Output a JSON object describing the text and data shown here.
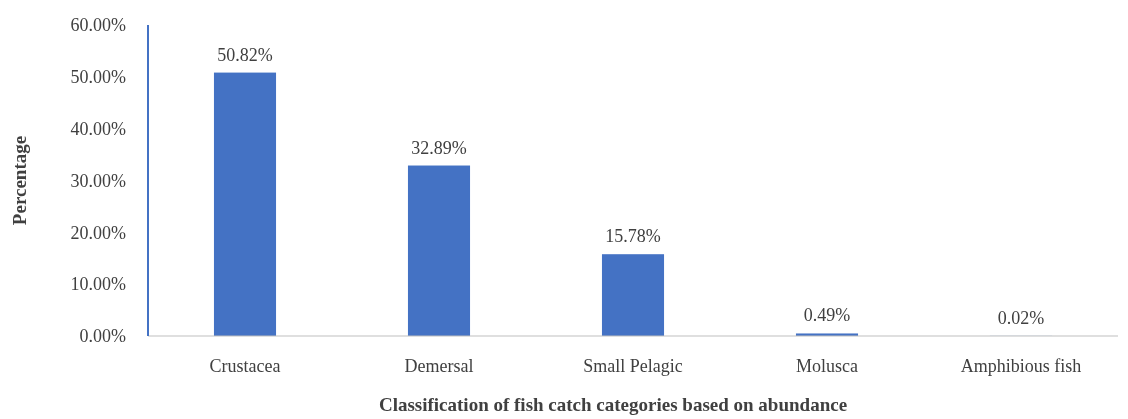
{
  "chart_data": {
    "type": "bar",
    "xlabel": "Classification of fish catch categories based on abundance",
    "ylabel": "Percentage",
    "categories": [
      "Crustacea",
      "Demersal",
      "Small Pelagic",
      "Molusca",
      "Amphibious fish"
    ],
    "values": [
      50.82,
      32.89,
      15.78,
      0.49,
      0.02
    ],
    "value_labels": [
      "50.82%",
      "32.89%",
      "15.78%",
      "0.49%",
      "0.02%"
    ],
    "color": "#4472c4",
    "ylim": [
      0,
      60
    ],
    "yticks": [
      {
        "value": 0,
        "label": "0.00%"
      },
      {
        "value": 10,
        "label": "10.00%"
      },
      {
        "value": 20,
        "label": "20.00%"
      },
      {
        "value": 30,
        "label": "30.00%"
      },
      {
        "value": 40,
        "label": "40.00%"
      },
      {
        "value": 50,
        "label": "50.00%"
      },
      {
        "value": 60,
        "label": "60.00%"
      }
    ],
    "grid": false
  }
}
